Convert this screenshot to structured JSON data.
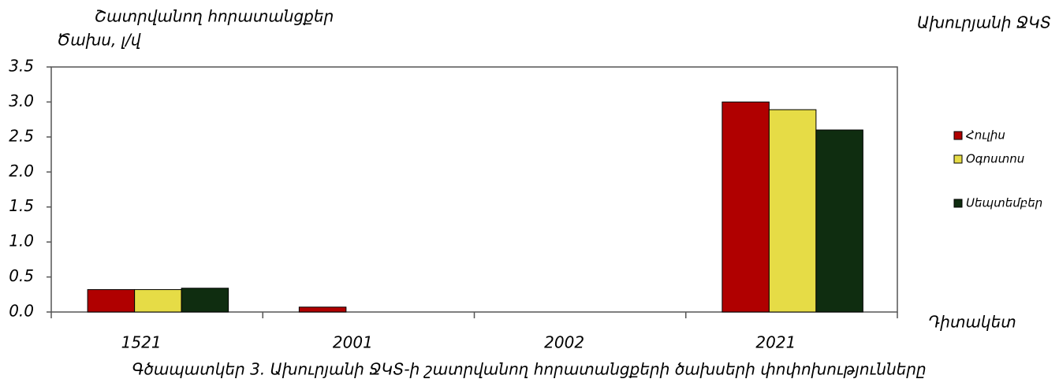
{
  "chart_data": {
    "type": "bar",
    "title": "Ախուրյանի ՋԿՏ",
    "subtitle": "Շատրվանող հորատանցքեր",
    "y_label": "Ծախս, լ/վ",
    "x_label": "Դիտակետ",
    "caption": "Գծապատկեր 3. Ախուրյանի ՋԿՏ-ի շատրվանող հորատանցքերի ծախսերի փոփոխությունները",
    "categories": [
      "1521",
      "2001",
      "2002",
      "2021"
    ],
    "series": [
      {
        "name": "Հուլիս",
        "color": "#b00000",
        "values": [
          0.32,
          0.07,
          0,
          3.0
        ]
      },
      {
        "name": "Օգոստոս",
        "color": "#e6dc46",
        "values": [
          0.32,
          0,
          0,
          2.89
        ]
      },
      {
        "name": "Սեպտեմբեր",
        "color": "#0f2d10",
        "values": [
          0.34,
          0,
          0,
          2.6
        ]
      }
    ],
    "ylim": [
      0,
      3.5
    ],
    "yticks": [
      {
        "value": 0,
        "label": "0.0"
      },
      0.5,
      {
        "value": 1,
        "label": "1.0"
      },
      1.5,
      {
        "value": 2,
        "label": "2.0"
      },
      2.5,
      {
        "value": 3,
        "label": "3.0"
      },
      3.5
    ],
    "legend": "right"
  }
}
